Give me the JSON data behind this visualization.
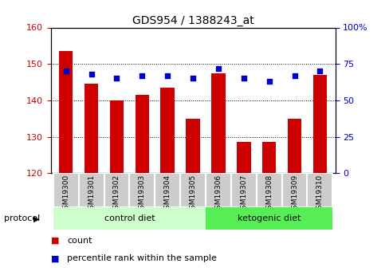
{
  "title": "GDS954 / 1388243_at",
  "samples": [
    "GSM19300",
    "GSM19301",
    "GSM19302",
    "GSM19303",
    "GSM19304",
    "GSM19305",
    "GSM19306",
    "GSM19307",
    "GSM19308",
    "GSM19309",
    "GSM19310"
  ],
  "counts": [
    153.5,
    144.5,
    140.0,
    141.5,
    143.5,
    135.0,
    147.5,
    128.5,
    128.5,
    135.0,
    147.0
  ],
  "percentiles": [
    70,
    68,
    65,
    67,
    67,
    65,
    72,
    65,
    63,
    67,
    70
  ],
  "ylim_left": [
    120,
    160
  ],
  "ylim_right": [
    0,
    100
  ],
  "yticks_left": [
    120,
    130,
    140,
    150,
    160
  ],
  "yticks_right": [
    0,
    25,
    50,
    75,
    100
  ],
  "ytick_right_labels": [
    "0",
    "25",
    "50",
    "75",
    "100%"
  ],
  "bar_color": "#cc0000",
  "dot_color": "#0000cc",
  "bar_width": 0.55,
  "grid_color": "black",
  "bg_plot": "#ffffff",
  "control_label": "control diet",
  "ketogenic_label": "ketogenic diet",
  "protocol_label": "protocol",
  "legend_count": "count",
  "legend_percentile": "percentile rank within the sample",
  "control_bg": "#ccffcc",
  "ketogenic_bg": "#55ee55",
  "xlabel_color": "#cc0000",
  "dot_color_hex": "#0000cc",
  "tick_label_fontsize": 8,
  "title_fontsize": 10,
  "n_control": 6,
  "n_ketogenic": 5
}
